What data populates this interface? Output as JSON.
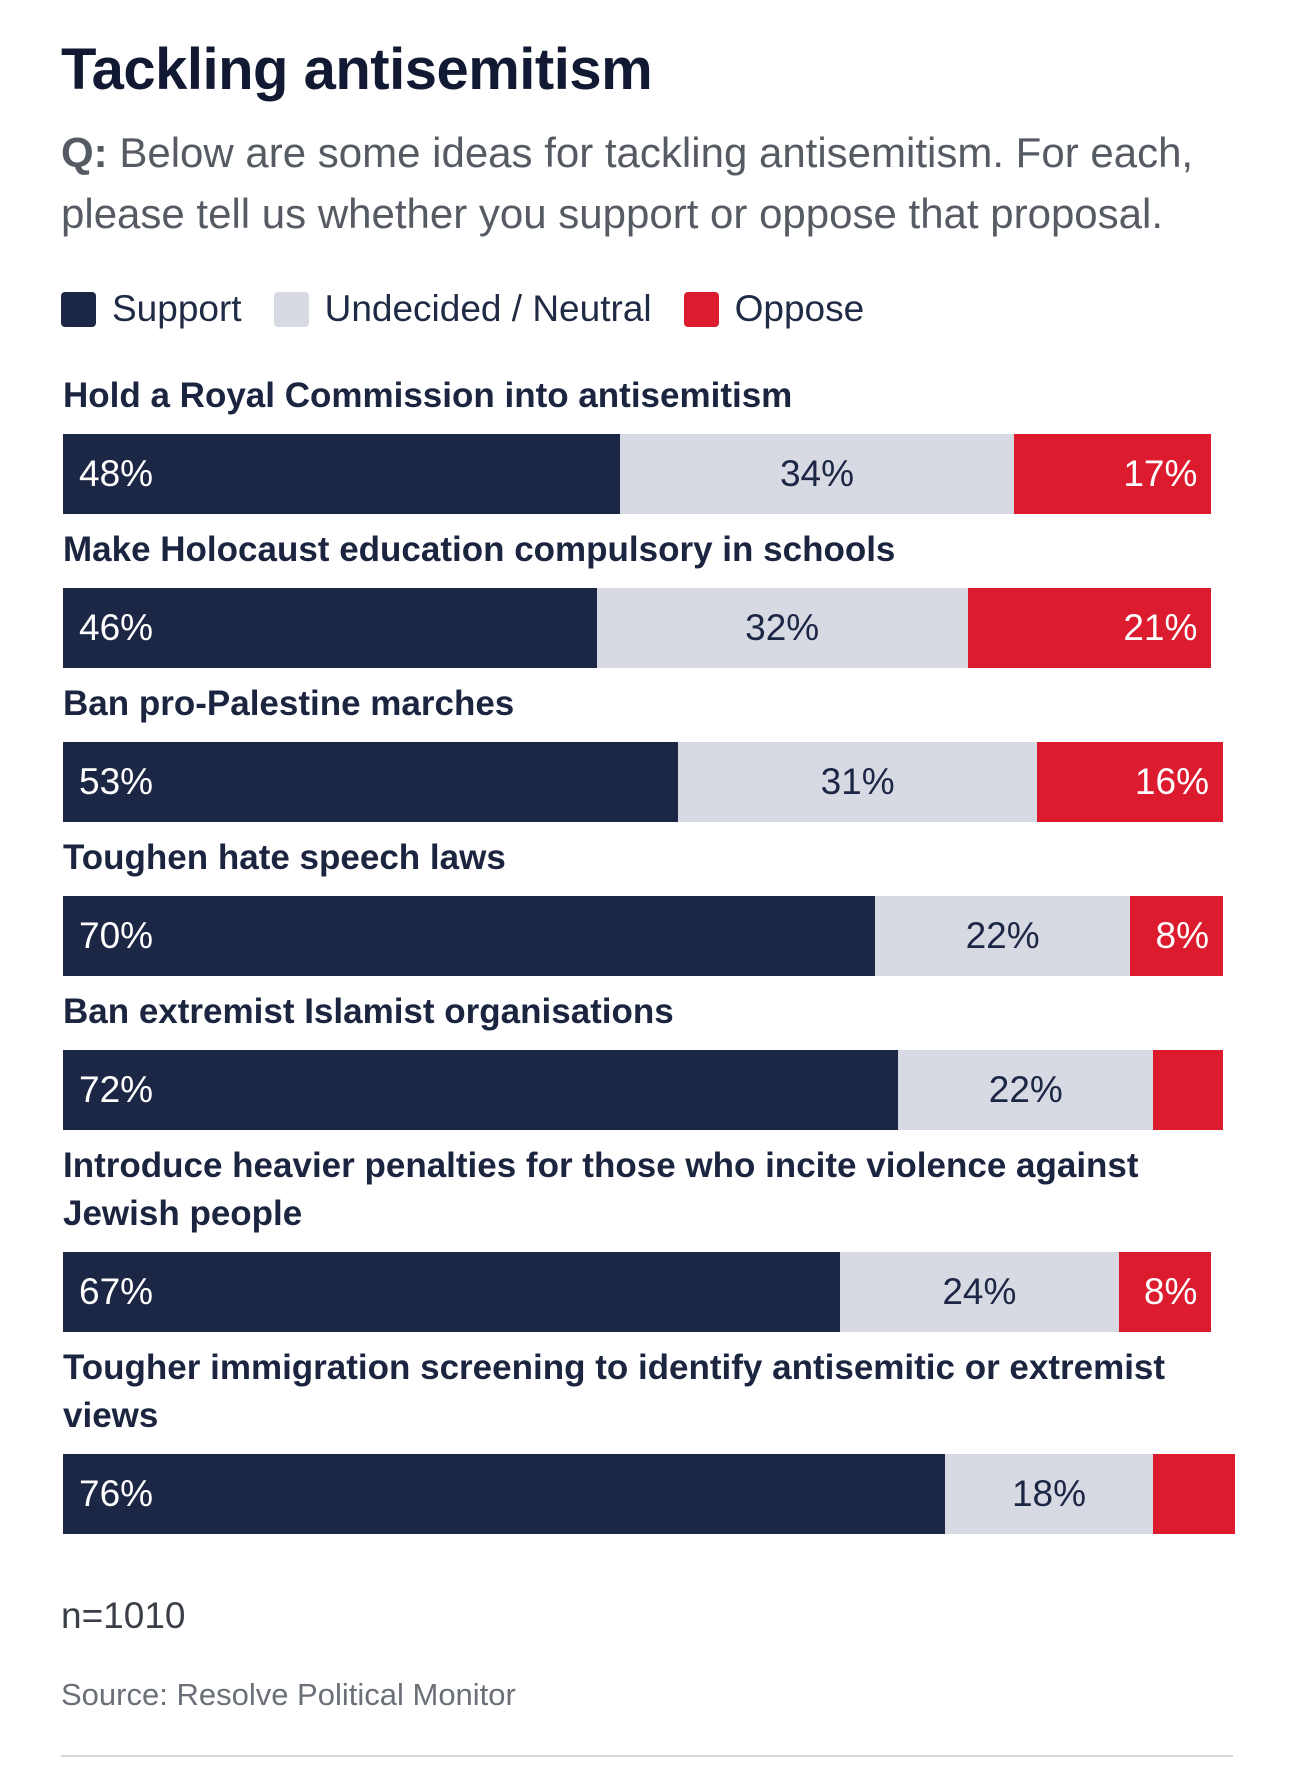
{
  "chart_data": {
    "type": "bar",
    "orientation": "horizontal-stacked-100",
    "title": "Tackling antisemitism",
    "subtitle_prefix": "Q:",
    "subtitle": "Below are some ideas for tackling antisemitism. For each, please tell us whether you support or oppose that proposal.",
    "categories": [
      "Hold a Royal Commission into antisemitism",
      "Make Holocaust education compulsory in schools",
      "Ban pro-Palestine marches",
      "Toughen hate speech laws",
      "Ban extremist Islamist organisations",
      "Introduce heavier penalties for those who incite violence against Jewish people",
      "Tougher immigration screening to identify antisemitic or extremist views"
    ],
    "series": [
      {
        "name": "Support",
        "color": "#1c2645",
        "values": [
          48,
          46,
          53,
          70,
          72,
          67,
          76
        ]
      },
      {
        "name": "Undecided / Neutral",
        "color": "#d8dae3",
        "values": [
          34,
          32,
          31,
          22,
          22,
          24,
          18
        ]
      },
      {
        "name": "Oppose",
        "color": "#dc1b2e",
        "values": [
          17,
          21,
          16,
          8,
          6,
          8,
          7
        ]
      }
    ],
    "labels": [
      [
        "48%",
        "34%",
        "17%"
      ],
      [
        "46%",
        "32%",
        "21%"
      ],
      [
        "53%",
        "31%",
        "16%"
      ],
      [
        "70%",
        "22%",
        "8%"
      ],
      [
        "72%",
        "22%",
        ""
      ],
      [
        "67%",
        "24%",
        "8%"
      ],
      [
        "76%",
        "18%",
        ""
      ]
    ],
    "xlim": [
      0,
      100
    ]
  },
  "footer": {
    "sample": "n=1010",
    "source": "Source: Resolve Political Monitor"
  }
}
